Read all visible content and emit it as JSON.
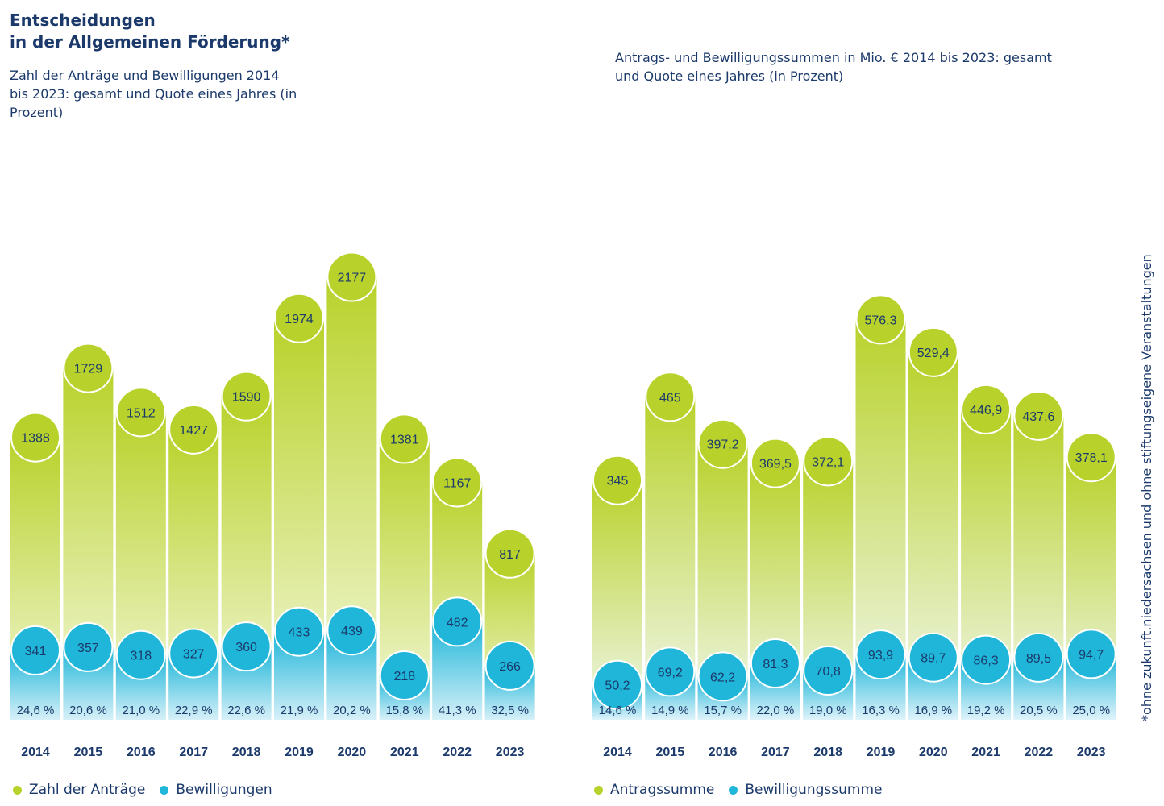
{
  "title_line1": "Entscheidungen",
  "title_line2": "in der Allgemeinen Förderung*",
  "footnote": "*ohne zukunft.niedersachsen und ohne stiftungseigene Veranstaltungen",
  "colors": {
    "green": "#b9d22b",
    "blue": "#1fb6d9",
    "text": "#1b3a6b"
  },
  "legend_left": {
    "green": "Zahl der Anträge",
    "blue": "Bewilligungen"
  },
  "legend_right": {
    "green": "Antragssumme",
    "blue": "Bewilligungssumme"
  },
  "chart_data": [
    {
      "type": "bar",
      "title": "Zahl der Anträge und Bewilligungen 2014 bis 2023: gesamt und Quote eines Jahres (in Prozent)",
      "categories": [
        "2014",
        "2015",
        "2016",
        "2017",
        "2018",
        "2019",
        "2020",
        "2021",
        "2022",
        "2023"
      ],
      "series": [
        {
          "name": "Zahl der Anträge",
          "values": [
            1388,
            1729,
            1512,
            1427,
            1590,
            1974,
            2177,
            1381,
            1167,
            817
          ],
          "labels": [
            "1388",
            "1729",
            "1512",
            "1427",
            "1590",
            "1974",
            "2177",
            "1381",
            "1167",
            "817"
          ]
        },
        {
          "name": "Bewilligungen",
          "values": [
            341,
            357,
            318,
            327,
            360,
            433,
            439,
            218,
            482,
            266
          ],
          "labels": [
            "341",
            "357",
            "318",
            "327",
            "360",
            "433",
            "439",
            "218",
            "482",
            "266"
          ]
        }
      ],
      "quote": [
        "24,6 %",
        "20,6 %",
        "21,0 %",
        "22,9 %",
        "22,6 %",
        "21,9 %",
        "20,2 %",
        "15,8 %",
        "41,3 %",
        "32,5 %"
      ]
    },
    {
      "type": "bar",
      "title": "Antrags- und Bewilligungssummen in Mio. € 2014 bis 2023: gesamt und Quote eines Jahres (in Prozent)",
      "categories": [
        "2014",
        "2015",
        "2016",
        "2017",
        "2018",
        "2019",
        "2020",
        "2021",
        "2022",
        "2023"
      ],
      "series": [
        {
          "name": "Antragssumme",
          "values": [
            345,
            465,
            397.2,
            369.5,
            372.1,
            576.3,
            529.4,
            446.9,
            437.6,
            378.1
          ],
          "labels": [
            "345",
            "465",
            "397,2",
            "369,5",
            "372,1",
            "576,3",
            "529,4",
            "446,9",
            "437,6",
            "378,1"
          ]
        },
        {
          "name": "Bewilligungssumme",
          "values": [
            50.2,
            69.2,
            62.2,
            81.3,
            70.8,
            93.9,
            89.7,
            86.3,
            89.5,
            94.7
          ],
          "labels": [
            "50,2",
            "69,2",
            "62,2",
            "81,3",
            "70,8",
            "93,9",
            "89,7",
            "86,3",
            "89,5",
            "94,7"
          ]
        }
      ],
      "quote": [
        "14,6 %",
        "14,9 %",
        "15,7 %",
        "22,0 %",
        "19,0 %",
        "16,3 %",
        "16,9 %",
        "19,2 %",
        "20,5 %",
        "25,0 %"
      ]
    }
  ]
}
